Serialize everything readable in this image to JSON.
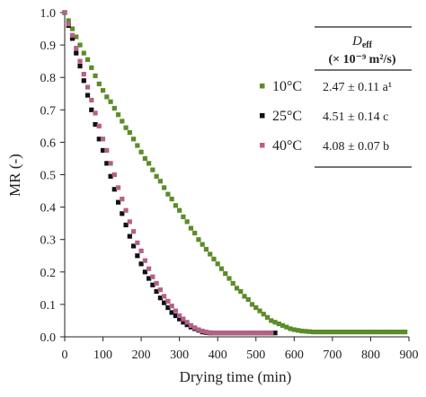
{
  "chart_data": {
    "type": "scatter",
    "xlabel": "Drying time (min)",
    "ylabel": "MR (-)",
    "xlim": [
      0,
      900
    ],
    "ylim": [
      0,
      1.0
    ],
    "x_ticks": [
      "0",
      "100",
      "200",
      "300",
      "400",
      "500",
      "600",
      "700",
      "800",
      "900"
    ],
    "y_ticks": [
      "0.0",
      "0.1",
      "0.2",
      "0.3",
      "0.4",
      "0.5",
      "0.6",
      "0.7",
      "0.8",
      "0.9",
      "1.0"
    ],
    "grid": false,
    "legend_placement": "top-right",
    "series": [
      {
        "name": "10°C",
        "color": "#5b8c2a",
        "x": [
          0,
          10,
          20,
          30,
          40,
          50,
          60,
          70,
          80,
          90,
          100,
          110,
          120,
          130,
          140,
          150,
          160,
          170,
          180,
          190,
          200,
          210,
          220,
          230,
          240,
          250,
          260,
          270,
          280,
          290,
          300,
          310,
          320,
          330,
          340,
          350,
          360,
          370,
          380,
          390,
          400,
          410,
          420,
          430,
          440,
          450,
          460,
          470,
          480,
          490,
          500,
          510,
          520,
          530,
          540,
          550,
          560,
          570,
          580,
          590,
          600,
          610,
          620,
          630,
          640,
          650,
          660,
          670,
          680,
          690,
          700,
          710,
          720,
          730,
          740,
          750,
          760,
          770,
          780,
          790,
          800,
          810,
          820,
          830,
          840,
          850,
          860,
          870,
          880,
          890
        ],
        "y": [
          1.0,
          0.975,
          0.95,
          0.925,
          0.9,
          0.875,
          0.855,
          0.83,
          0.805,
          0.78,
          0.76,
          0.74,
          0.725,
          0.705,
          0.685,
          0.665,
          0.645,
          0.63,
          0.61,
          0.59,
          0.57,
          0.55,
          0.535,
          0.515,
          0.495,
          0.48,
          0.46,
          0.44,
          0.425,
          0.405,
          0.39,
          0.37,
          0.355,
          0.335,
          0.32,
          0.3,
          0.285,
          0.27,
          0.255,
          0.24,
          0.225,
          0.21,
          0.195,
          0.18,
          0.165,
          0.15,
          0.14,
          0.125,
          0.115,
          0.1,
          0.09,
          0.08,
          0.07,
          0.06,
          0.05,
          0.045,
          0.04,
          0.035,
          0.03,
          0.025,
          0.022,
          0.02,
          0.018,
          0.017,
          0.016,
          0.015,
          0.015,
          0.015,
          0.015,
          0.015,
          0.015,
          0.015,
          0.015,
          0.015,
          0.015,
          0.015,
          0.015,
          0.015,
          0.015,
          0.015,
          0.015,
          0.015,
          0.015,
          0.015,
          0.015,
          0.015,
          0.015,
          0.015,
          0.015,
          0.015
        ]
      },
      {
        "name": "25°C",
        "color": "#111111",
        "x": [
          0,
          10,
          20,
          30,
          40,
          50,
          60,
          70,
          80,
          90,
          100,
          110,
          120,
          130,
          140,
          150,
          160,
          170,
          180,
          190,
          200,
          210,
          220,
          230,
          240,
          250,
          260,
          270,
          280,
          290,
          300,
          310,
          320,
          330,
          340,
          350,
          360,
          370,
          380,
          390,
          400,
          410,
          420,
          430,
          440,
          450,
          460,
          470,
          480,
          490,
          500,
          510,
          520,
          530,
          540,
          550
        ],
        "y": [
          1.0,
          0.96,
          0.92,
          0.875,
          0.835,
          0.79,
          0.745,
          0.7,
          0.655,
          0.61,
          0.575,
          0.535,
          0.495,
          0.455,
          0.415,
          0.38,
          0.345,
          0.31,
          0.28,
          0.25,
          0.225,
          0.2,
          0.18,
          0.16,
          0.14,
          0.12,
          0.105,
          0.09,
          0.075,
          0.065,
          0.055,
          0.045,
          0.037,
          0.03,
          0.025,
          0.02,
          0.015,
          0.013,
          0.012,
          0.012,
          0.012,
          0.012,
          0.012,
          0.012,
          0.012,
          0.012,
          0.012,
          0.012,
          0.012,
          0.012,
          0.012,
          0.012,
          0.012,
          0.012,
          0.012,
          0.012
        ]
      },
      {
        "name": "40°C",
        "color": "#b56187",
        "x": [
          0,
          10,
          20,
          30,
          40,
          50,
          60,
          70,
          80,
          90,
          100,
          110,
          120,
          130,
          140,
          150,
          160,
          170,
          180,
          190,
          200,
          210,
          220,
          230,
          240,
          250,
          260,
          270,
          280,
          290,
          300,
          310,
          320,
          330,
          340,
          350,
          360,
          370,
          380,
          390,
          400,
          410,
          420,
          430,
          440,
          450,
          460,
          470,
          480,
          490,
          500,
          510,
          520,
          530,
          540
        ],
        "y": [
          1.0,
          0.965,
          0.93,
          0.89,
          0.85,
          0.81,
          0.77,
          0.73,
          0.69,
          0.65,
          0.61,
          0.575,
          0.535,
          0.5,
          0.46,
          0.425,
          0.39,
          0.355,
          0.325,
          0.29,
          0.265,
          0.235,
          0.21,
          0.185,
          0.165,
          0.145,
          0.125,
          0.11,
          0.095,
          0.08,
          0.065,
          0.055,
          0.045,
          0.035,
          0.028,
          0.022,
          0.018,
          0.015,
          0.013,
          0.012,
          0.012,
          0.012,
          0.012,
          0.012,
          0.012,
          0.012,
          0.012,
          0.012,
          0.012,
          0.012,
          0.012,
          0.012,
          0.012,
          0.012,
          0.012
        ]
      }
    ],
    "table": {
      "header_symbol": "D",
      "header_subscript": "eff",
      "header_units": "(× 10⁻⁹ m²/s)",
      "rows": [
        {
          "series": "10°C",
          "value": "2.47 ± 0.11 a¹"
        },
        {
          "series": "25°C",
          "value": "4.51 ± 0.14 c"
        },
        {
          "series": "40°C",
          "value": "4.08 ± 0.07 b"
        }
      ]
    }
  }
}
